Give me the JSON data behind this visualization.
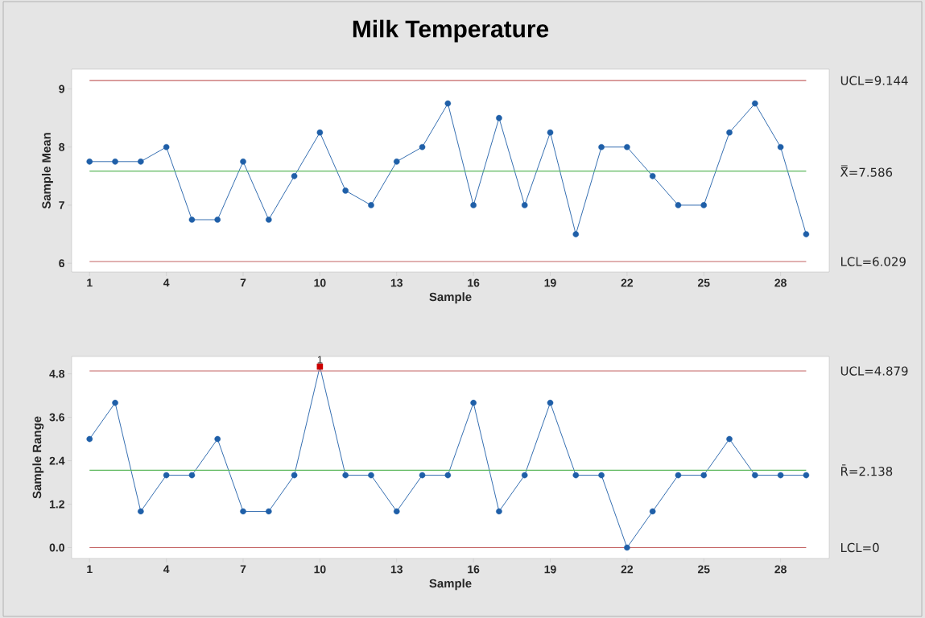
{
  "chart_data": [
    {
      "type": "line",
      "title": "Milk Temperature",
      "xlabel": "Sample",
      "ylabel": "Sample Mean",
      "x": [
        1,
        2,
        3,
        4,
        5,
        6,
        7,
        8,
        9,
        10,
        11,
        12,
        13,
        14,
        15,
        16,
        17,
        18,
        19,
        20,
        21,
        22,
        23,
        24,
        25,
        26,
        27,
        28,
        29
      ],
      "xlim": [
        0.3,
        29.9
      ],
      "ylim": [
        5.85,
        9.34
      ],
      "xticks": [
        1,
        4,
        7,
        10,
        13,
        16,
        19,
        22,
        25,
        28
      ],
      "yticks": [
        6,
        7,
        8,
        9
      ],
      "marker": "circle",
      "series": [
        {
          "color": "#1f5fa8",
          "values": [
            7.75,
            7.75,
            7.75,
            8,
            6.75,
            6.75,
            7.75,
            6.75,
            7.5,
            8.25,
            7.25,
            7,
            7.75,
            8,
            8.75,
            7,
            8.5,
            7,
            8.25,
            6.5,
            8,
            8,
            7.5,
            7,
            7,
            8.25,
            8.75,
            8,
            6.5
          ]
        }
      ],
      "ref_lines": [
        {
          "axis": "y",
          "value": 9.144,
          "label": "UCL=9.144",
          "color": "#c46464"
        },
        {
          "axis": "y",
          "value": 7.586,
          "label": "X̿=7.586",
          "color": "#5cb85c"
        },
        {
          "axis": "y",
          "value": 6.029,
          "label": "LCL=6.029",
          "color": "#c46464"
        }
      ]
    },
    {
      "type": "line",
      "xlabel": "Sample",
      "ylabel": "Sample Range",
      "x": [
        1,
        2,
        3,
        4,
        5,
        6,
        7,
        8,
        9,
        10,
        11,
        12,
        13,
        14,
        15,
        16,
        17,
        18,
        19,
        20,
        21,
        22,
        23,
        24,
        25,
        26,
        27,
        28,
        29
      ],
      "xlim": [
        0.3,
        29.9
      ],
      "ylim": [
        -0.3,
        5.28
      ],
      "xticks": [
        1,
        4,
        7,
        10,
        13,
        16,
        19,
        22,
        25,
        28
      ],
      "yticks": [
        {
          "value": 0,
          "label": "0.0"
        },
        1.2,
        2.4,
        3.6,
        4.8
      ],
      "marker": "circle",
      "series": [
        {
          "color": "#1f5fa8",
          "values": [
            3,
            4,
            1,
            2,
            2,
            3,
            1,
            1,
            2,
            5,
            2,
            2,
            1,
            2,
            2,
            4,
            1,
            2,
            4,
            2,
            2,
            0,
            1,
            2,
            2,
            3,
            2,
            2,
            2
          ],
          "colors": [
            "#1f5fa8",
            "#1f5fa8",
            "#1f5fa8",
            "#1f5fa8",
            "#1f5fa8",
            "#1f5fa8",
            "#1f5fa8",
            "#1f5fa8",
            "#1f5fa8",
            "#cc0000",
            "#1f5fa8",
            "#1f5fa8",
            "#1f5fa8",
            "#1f5fa8",
            "#1f5fa8",
            "#1f5fa8",
            "#1f5fa8",
            "#1f5fa8",
            "#1f5fa8",
            "#1f5fa8",
            "#1f5fa8",
            "#1f5fa8",
            "#1f5fa8",
            "#1f5fa8",
            "#1f5fa8",
            "#1f5fa8",
            "#1f5fa8",
            "#1f5fa8",
            "#1f5fa8"
          ]
        }
      ],
      "annotations": [
        {
          "text": "1",
          "x": 10,
          "y": 5
        }
      ],
      "ref_lines": [
        {
          "axis": "y",
          "value": 4.879,
          "label": "UCL=4.879",
          "color": "#c46464"
        },
        {
          "axis": "y",
          "value": 2.138,
          "label": "R̄=2.138",
          "color": "#5cb85c"
        },
        {
          "axis": "y",
          "value": 0,
          "label": "LCL=0",
          "color": "#c46464"
        }
      ]
    }
  ]
}
